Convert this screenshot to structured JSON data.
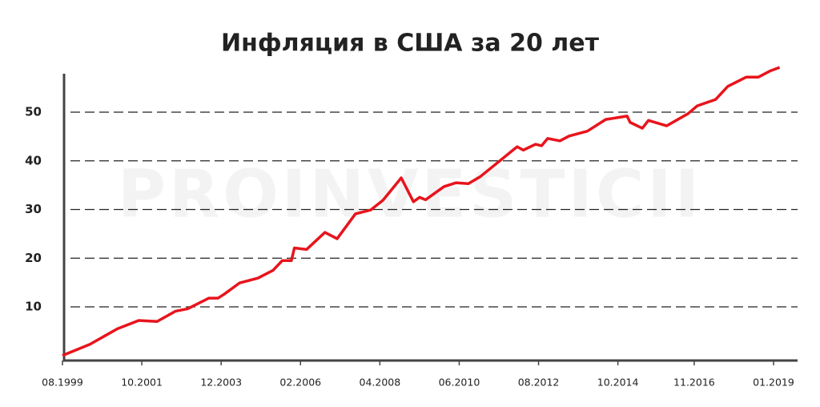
{
  "chart_data": {
    "type": "line",
    "title": "Инфляция в США за 20 лет",
    "watermark": "PROINVESTICII",
    "x": [
      "08.1999",
      "05.2000",
      "02.2001",
      "09.2001",
      "03.2002",
      "09.2002",
      "01.2003",
      "08.2003",
      "11.2003",
      "01.2004",
      "06.2004",
      "12.2004",
      "05.2005",
      "08.2005",
      "11.2005",
      "12.2005",
      "04.2006",
      "10.2006",
      "02.2007",
      "08.2007",
      "01.2008",
      "05.2008",
      "11.2008",
      "03.2009",
      "05.2009",
      "07.2009",
      "01.2010",
      "05.2010",
      "09.2010",
      "01.2011",
      "01.2012",
      "03.2012",
      "07.2012",
      "09.2012",
      "11.2012",
      "03.2013",
      "06.2013",
      "12.2013",
      "06.2014",
      "01.2015",
      "02.2015",
      "06.2015",
      "08.2015",
      "02.2016",
      "09.2016",
      "12.2016",
      "06.2017",
      "10.2017",
      "04.2018",
      "08.2018",
      "12.2018",
      "03.2019"
    ],
    "series": [
      {
        "name": "Инфляция",
        "color": "#e8141c",
        "values": [
          0,
          2.3,
          5.5,
          7.2,
          7.0,
          9.1,
          9.6,
          11.8,
          11.8,
          12.6,
          14.9,
          15.9,
          17.5,
          19.5,
          19.5,
          22.1,
          21.8,
          25.3,
          24.0,
          29.1,
          29.9,
          31.9,
          36.5,
          31.6,
          32.5,
          32.0,
          34.7,
          35.5,
          35.3,
          36.8,
          42.9,
          42.2,
          43.4,
          43.1,
          44.6,
          44.1,
          45.1,
          46.1,
          48.5,
          49.2,
          47.9,
          46.7,
          48.3,
          47.2,
          49.7,
          51.3,
          52.6,
          55.3,
          57.2,
          57.2,
          58.5,
          59.2
        ]
      }
    ],
    "xticks": [
      "08.1999",
      "10.2001",
      "12.2003",
      "02.2006",
      "04.2008",
      "06.2010",
      "08.2012",
      "10.2014",
      "11.2016",
      "01.2019"
    ],
    "ylim": [
      0,
      60
    ],
    "yticks": [
      10,
      20,
      30,
      40,
      50
    ],
    "grid": true
  }
}
